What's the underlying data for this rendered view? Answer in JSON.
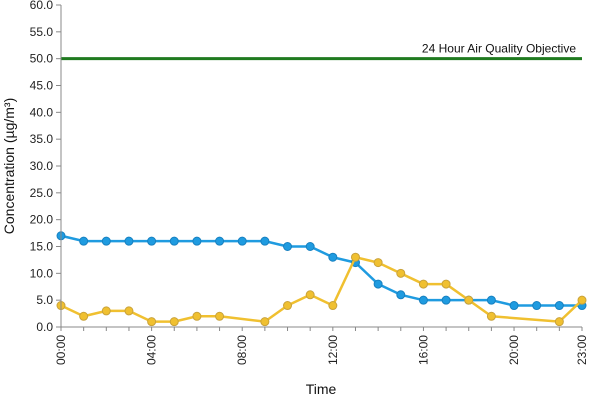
{
  "chart_data": {
    "type": "line",
    "title": "",
    "xlabel": "Time",
    "ylabel": "Concentration (µg/m³)",
    "ylim": [
      0,
      60
    ],
    "y_ticks": [
      "0.0",
      "5.0",
      "10.0",
      "15.0",
      "20.0",
      "25.0",
      "30.0",
      "35.0",
      "40.0",
      "45.0",
      "50.0",
      "55.0",
      "60.0"
    ],
    "y_tick_values": [
      0,
      5,
      10,
      15,
      20,
      25,
      30,
      35,
      40,
      45,
      50,
      55,
      60
    ],
    "x": [
      0,
      1,
      2,
      3,
      4,
      5,
      6,
      7,
      8,
      9,
      10,
      11,
      12,
      13,
      14,
      15,
      16,
      17,
      18,
      19,
      20,
      21,
      22,
      23
    ],
    "xlim": [
      0,
      23
    ],
    "x_tick_values": [
      0,
      4,
      8,
      12,
      16,
      20,
      23
    ],
    "x_ticks": [
      "00:00",
      "04:00",
      "08:00",
      "12:00",
      "16:00",
      "20:00",
      "23:00"
    ],
    "grid": false,
    "series": [
      {
        "color": "#1f9be0",
        "x": [
          0,
          1,
          2,
          3,
          4,
          5,
          6,
          7,
          8,
          9,
          10,
          11,
          12,
          13,
          14,
          15,
          16,
          17,
          18,
          19,
          20,
          21,
          22,
          23
        ],
        "values": [
          17,
          16,
          16,
          16,
          16,
          16,
          16,
          16,
          16,
          16,
          15,
          15,
          13,
          12,
          8,
          6,
          5,
          5,
          5,
          5,
          4,
          4,
          4,
          4
        ]
      },
      {
        "color": "#f0c030",
        "x": [
          0,
          1,
          2,
          3,
          4,
          5,
          6,
          7,
          9,
          10,
          11,
          12,
          13,
          14,
          15,
          16,
          17,
          18,
          19,
          22,
          23
        ],
        "values": [
          4,
          2,
          3,
          3,
          1,
          1,
          2,
          2,
          1,
          4,
          6,
          4,
          13,
          12,
          10,
          8,
          8,
          5,
          2,
          1,
          5
        ]
      }
    ],
    "reference_line": {
      "value": 50,
      "label": "24 Hour Air Quality Objective",
      "color": "#1f7a1f"
    }
  }
}
